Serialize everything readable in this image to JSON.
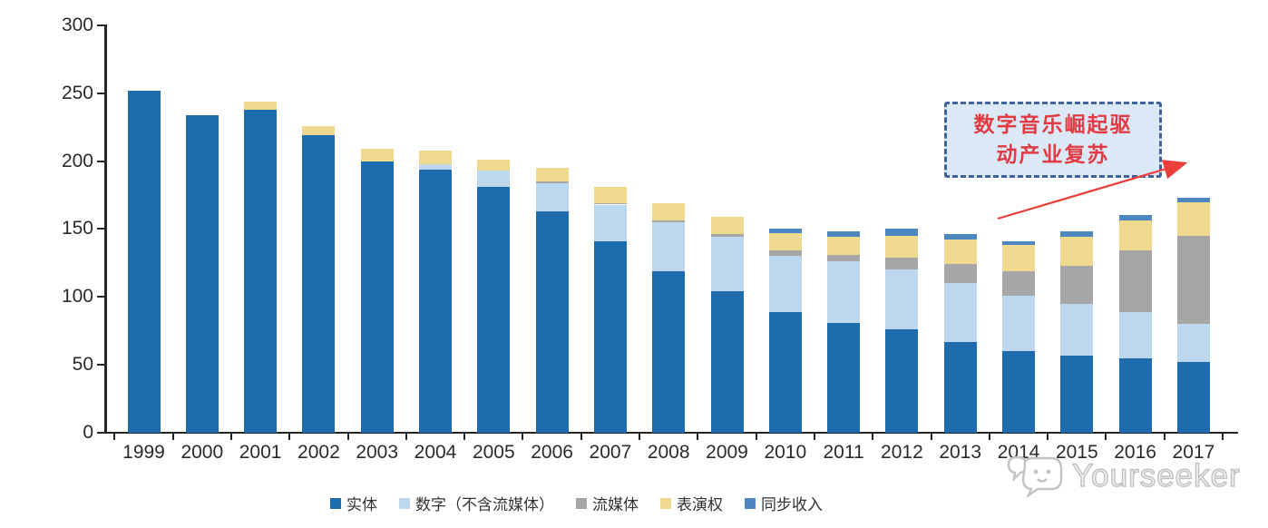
{
  "chart_data": {
    "type": "bar",
    "stacked": true,
    "title": "",
    "xlabel": "",
    "ylabel": "",
    "ylim": [
      0,
      300
    ],
    "yticks": [
      0,
      50,
      100,
      150,
      200,
      250,
      300
    ],
    "grid": false,
    "legend_position": "bottom",
    "categories": [
      "1999",
      "2000",
      "2001",
      "2002",
      "2003",
      "2004",
      "2005",
      "2006",
      "2007",
      "2008",
      "2009",
      "2010",
      "2011",
      "2012",
      "2013",
      "2014",
      "2015",
      "2016",
      "2017"
    ],
    "series": [
      {
        "key": "physical",
        "name": "实体",
        "color": "#1e6cae",
        "values": [
          252,
          234,
          238,
          219,
          200,
          194,
          181,
          163,
          141,
          119,
          104,
          89,
          81,
          76,
          67,
          60,
          57,
          55,
          52
        ]
      },
      {
        "key": "digital",
        "name": "数字（不含流媒体）",
        "color": "#bdd7ee",
        "values": [
          0,
          0,
          0,
          0,
          0,
          4,
          12,
          21,
          27,
          36,
          40,
          41,
          45,
          44,
          43,
          41,
          38,
          34,
          28
        ]
      },
      {
        "key": "streaming",
        "name": "流媒体",
        "color": "#a6a6a6",
        "values": [
          0,
          0,
          0,
          0,
          0,
          0,
          0,
          1,
          1,
          1,
          2,
          4,
          5,
          9,
          14,
          18,
          28,
          45,
          65
        ]
      },
      {
        "key": "performance",
        "name": "表演权",
        "color": "#eed98f",
        "values": [
          0,
          0,
          6,
          7,
          9,
          10,
          8,
          10,
          12,
          13,
          13,
          13,
          13,
          16,
          18,
          19,
          21,
          22,
          25
        ]
      },
      {
        "key": "sync",
        "name": "同步收入",
        "color": "#4e86c0",
        "values": [
          0,
          0,
          0,
          0,
          0,
          0,
          0,
          0,
          0,
          0,
          0,
          3,
          4,
          5,
          4,
          3,
          4,
          4,
          3
        ]
      }
    ]
  },
  "annotation": {
    "line1": "数字音乐崛起驱",
    "line2": "动产业复苏",
    "text_color": "#e23b43",
    "box_fill": "#dbe9f7",
    "box_border": "#42629c",
    "arrow_color": "#ec3e3a"
  },
  "watermark": {
    "text": "Yourseeker",
    "color": "#c3c3c3"
  },
  "axis": {
    "line_color": "#262626",
    "label_color": "#2b2b2b"
  }
}
